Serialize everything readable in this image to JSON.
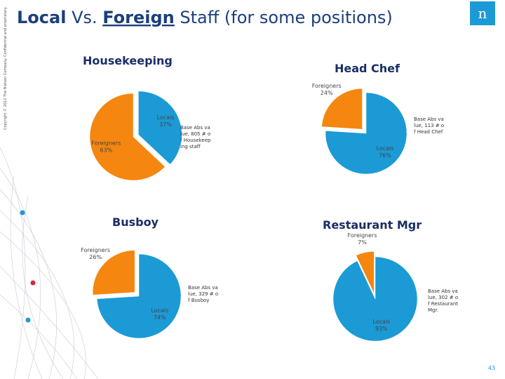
{
  "slide": {
    "title": [
      "Local",
      " Vs. ",
      "Foreign",
      " Staff (for some positions)"
    ],
    "copyright": "Copyright © 2012 The Nielsen Company. Confidential and proprietary.",
    "logo": "n",
    "page_number": "43"
  },
  "chart_data": [
    {
      "type": "pie",
      "title": "Housekeeping",
      "categories": [
        "Locals",
        "Foreigners"
      ],
      "values": [
        37,
        63
      ],
      "value_labels": [
        "37%",
        "63%"
      ],
      "colors": [
        "#1b9ad6",
        "#f5860f"
      ],
      "note": "Base Abs value, 805 # of Housekeeping staff"
    },
    {
      "type": "pie",
      "title": "Head Chef",
      "categories": [
        "Locals",
        "Foreigners"
      ],
      "values": [
        76,
        24
      ],
      "value_labels": [
        "76%",
        "24%"
      ],
      "colors": [
        "#1b9ad6",
        "#f5860f"
      ],
      "note": "Base Abs value, 113 # of Head Chef"
    },
    {
      "type": "pie",
      "title": "Busboy",
      "categories": [
        "Locals",
        "Foreigners"
      ],
      "values": [
        74,
        26
      ],
      "value_labels": [
        "74%",
        "26%"
      ],
      "colors": [
        "#1b9ad6",
        "#f5860f"
      ],
      "note": "Base Abs value, 329 # of Busboy"
    },
    {
      "type": "pie",
      "title": "Restaurant Mgr",
      "categories": [
        "Locals",
        "Foreigners"
      ],
      "values": [
        93,
        7
      ],
      "value_labels": [
        "93%",
        "7%"
      ],
      "colors": [
        "#1b9ad6",
        "#f5860f"
      ],
      "note": "Base Abs value, 302 # of Restaurant Mgr."
    }
  ]
}
